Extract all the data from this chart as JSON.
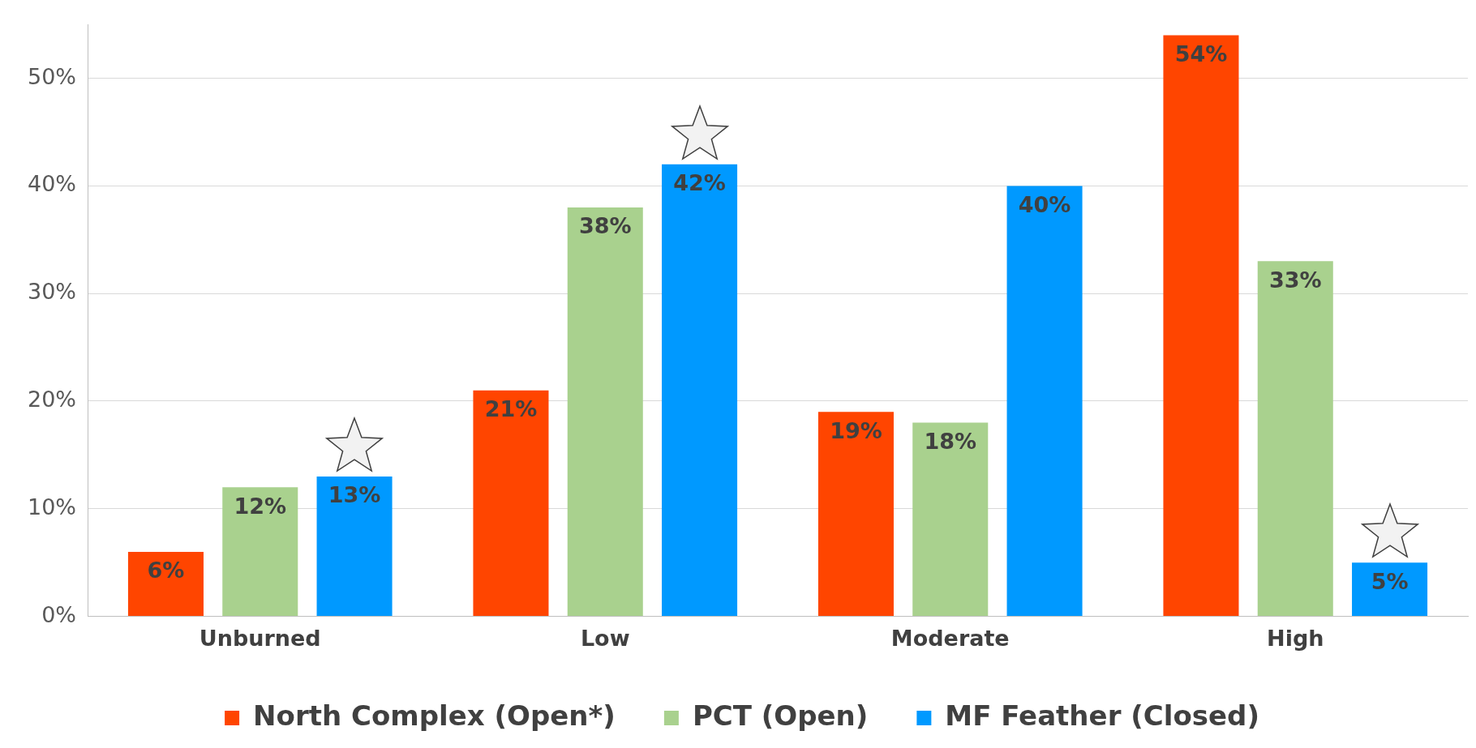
{
  "chart_data": {
    "type": "bar",
    "categories": [
      "Unburned",
      "Low",
      "Moderate",
      "High"
    ],
    "series": [
      {
        "name": "North Complex (Open*)",
        "color": "#ff4500",
        "values": [
          6,
          21,
          19,
          54
        ],
        "value_labels": [
          "6%",
          "21%",
          "19%",
          "54%"
        ]
      },
      {
        "name": "PCT (Open)",
        "color": "#a9d18e",
        "values": [
          12,
          38,
          18,
          33
        ],
        "value_labels": [
          "12%",
          "38%",
          "18%",
          "33%"
        ]
      },
      {
        "name": "MF Feather (Closed)",
        "color": "#0099ff",
        "values": [
          13,
          42,
          40,
          5
        ],
        "value_labels": [
          "13%",
          "42%",
          "40%",
          "5%"
        ]
      }
    ],
    "ylim": [
      0,
      55
    ],
    "yticks": [
      {
        "value": 0,
        "label": "0%"
      },
      {
        "value": 10,
        "label": "10%"
      },
      {
        "value": 20,
        "label": "20%"
      },
      {
        "value": 30,
        "label": "30%"
      },
      {
        "value": 40,
        "label": "40%"
      },
      {
        "value": 50,
        "label": "50%"
      }
    ],
    "grid": "y",
    "legend": "bottom"
  }
}
